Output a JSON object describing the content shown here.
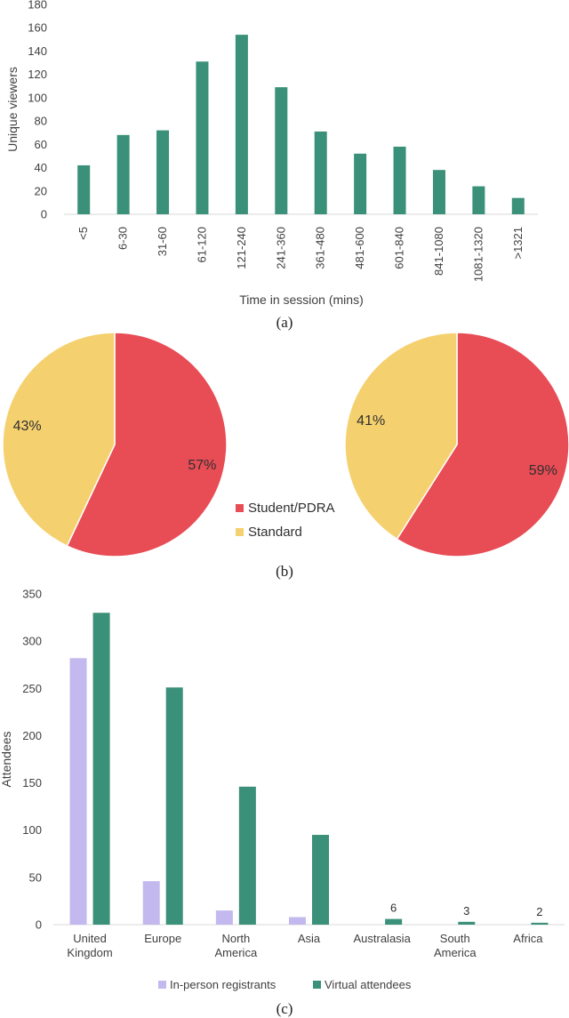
{
  "chart_data": [
    {
      "type": "bar",
      "caption": "(a)",
      "categories": [
        "<5",
        "6-30",
        "31-60",
        "61-120",
        "121-240",
        "241-360",
        "361-480",
        "481-600",
        "601-840",
        "841-1080",
        "1081-1320",
        ">1321"
      ],
      "values": [
        42,
        68,
        72,
        131,
        154,
        109,
        71,
        52,
        58,
        38,
        24,
        14
      ],
      "xlabel": "Time in session (mins)",
      "ylabel": "Unique viewers",
      "ylim": [
        0,
        180
      ],
      "yticks": [
        0,
        20,
        40,
        60,
        80,
        100,
        120,
        140,
        160,
        180
      ],
      "color": "#3a9079"
    },
    {
      "type": "pie",
      "caption": "(b)",
      "charts": [
        {
          "slices": [
            {
              "label": "Student/PDRA",
              "value": 57,
              "text": "57%"
            },
            {
              "label": "Standard",
              "value": 43,
              "text": "43%"
            }
          ]
        },
        {
          "slices": [
            {
              "label": "Student/PDRA",
              "value": 59,
              "text": "59%"
            },
            {
              "label": "Standard",
              "value": 41,
              "text": "41%"
            }
          ]
        }
      ],
      "legend": [
        {
          "label": "Student/PDRA",
          "color": "#e84c55"
        },
        {
          "label": "Standard",
          "color": "#f5d06e"
        }
      ],
      "legend_position": "center"
    },
    {
      "type": "bar",
      "caption": "(c)",
      "categories": [
        [
          "United",
          "Kingdom"
        ],
        [
          "Europe"
        ],
        [
          "North",
          "America"
        ],
        [
          "Asia"
        ],
        [
          "Australasia"
        ],
        [
          "South",
          "America"
        ],
        [
          "Africa"
        ]
      ],
      "series": [
        {
          "name": "In-person registrants",
          "color": "#c4b9ee",
          "values": [
            282,
            46,
            15,
            8,
            0,
            0,
            0
          ]
        },
        {
          "name": "Virtual attendees",
          "color": "#3a9079",
          "values": [
            330,
            251,
            146,
            95,
            6,
            3,
            2
          ]
        }
      ],
      "data_labels": [
        {
          "category": 4,
          "series": 1,
          "text": "6"
        },
        {
          "category": 5,
          "series": 1,
          "text": "3"
        },
        {
          "category": 6,
          "series": 1,
          "text": "2"
        }
      ],
      "ylabel": "Attendees",
      "ylim": [
        0,
        350
      ],
      "yticks": [
        0,
        50,
        100,
        150,
        200,
        250,
        300,
        350
      ],
      "legend_position": "bottom"
    }
  ]
}
